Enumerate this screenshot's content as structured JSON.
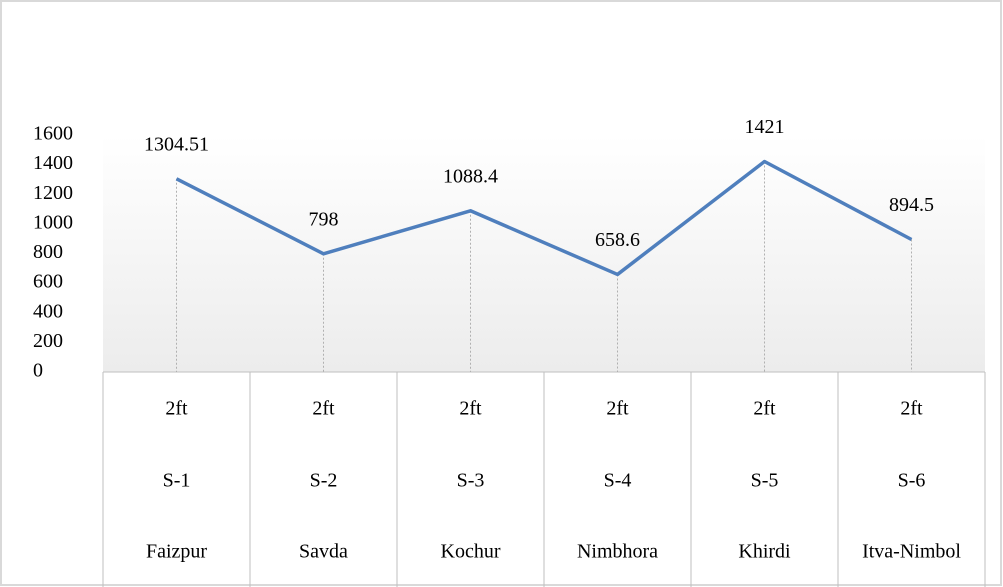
{
  "chart_data": {
    "type": "line",
    "categories": [
      [
        "2ft",
        "S-1",
        "Faizpur"
      ],
      [
        "2ft",
        "S-2",
        "Savda"
      ],
      [
        "2ft",
        "S-3",
        "Kochur"
      ],
      [
        "2ft",
        "S-4",
        "Nimbhora"
      ],
      [
        "2ft",
        "S-5",
        "Khirdi"
      ],
      [
        "2ft",
        "S-6",
        "Itva-Nimbol"
      ]
    ],
    "values": [
      1304.51,
      798,
      1088.4,
      658.6,
      1421,
      894.5
    ],
    "color": "#4f7fbd",
    "ylim": [
      0,
      1600
    ],
    "yticks": [
      0,
      200,
      400,
      600,
      800,
      1000,
      1200,
      1400,
      1600
    ],
    "grid": false
  }
}
